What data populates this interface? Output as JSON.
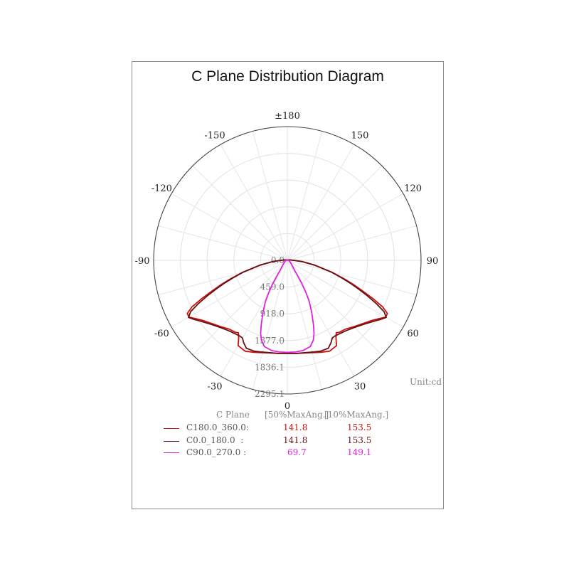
{
  "chart_data": {
    "type": "polar",
    "title": "C Plane Distribution Diagram",
    "unit_label": "Unit:cd",
    "angle_labels": [
      {
        "angle": 180,
        "text": "±180"
      },
      {
        "angle": 150,
        "text": "150"
      },
      {
        "angle": -150,
        "text": "-150"
      },
      {
        "angle": 120,
        "text": "120"
      },
      {
        "angle": -120,
        "text": "-120"
      },
      {
        "angle": 90,
        "text": "90"
      },
      {
        "angle": -90,
        "text": "-90"
      },
      {
        "angle": 60,
        "text": "60"
      },
      {
        "angle": -60,
        "text": "-60"
      },
      {
        "angle": 30,
        "text": "30"
      },
      {
        "angle": -30,
        "text": "-30"
      },
      {
        "angle": 0,
        "text": "0"
      }
    ],
    "radial_max": 2295.1,
    "radial_ticks": [
      "0.0",
      "459.0",
      "918.0",
      "1377.0",
      "1836.1",
      "2295.1"
    ],
    "grid": true,
    "series": [
      {
        "name": "C180.0_360.0:",
        "color": "#cc1111",
        "points": [
          [
            0,
            1600
          ],
          [
            5,
            1605
          ],
          [
            10,
            1615
          ],
          [
            15,
            1640
          ],
          [
            20,
            1680
          ],
          [
            25,
            1720
          ],
          [
            30,
            1690
          ],
          [
            32,
            1575
          ],
          [
            34,
            1500
          ],
          [
            36,
            1525
          ],
          [
            40,
            1545
          ],
          [
            45,
            1610
          ],
          [
            50,
            1690
          ],
          [
            55,
            1790
          ],
          [
            58,
            1880
          ],
          [
            60,
            1950
          ],
          [
            62,
            1945
          ],
          [
            64,
            1820
          ],
          [
            66,
            1600
          ],
          [
            68,
            1380
          ],
          [
            70,
            1200
          ],
          [
            72,
            1020
          ],
          [
            75,
            790
          ],
          [
            80,
            480
          ],
          [
            85,
            260
          ],
          [
            90,
            110
          ],
          [
            95,
            60
          ],
          [
            100,
            40
          ],
          [
            110,
            20
          ],
          [
            130,
            8
          ],
          [
            150,
            5
          ],
          [
            180,
            0
          ]
        ]
      },
      {
        "name": "C0.0_180.0  :",
        "color": "#661111",
        "points": [
          [
            0,
            1600
          ],
          [
            5,
            1605
          ],
          [
            10,
            1612
          ],
          [
            15,
            1630
          ],
          [
            20,
            1660
          ],
          [
            25,
            1665
          ],
          [
            28,
            1600
          ],
          [
            30,
            1540
          ],
          [
            32,
            1535
          ],
          [
            36,
            1550
          ],
          [
            40,
            1575
          ],
          [
            45,
            1630
          ],
          [
            50,
            1710
          ],
          [
            55,
            1820
          ],
          [
            58,
            1905
          ],
          [
            60,
            1960
          ],
          [
            62,
            1880
          ],
          [
            64,
            1700
          ],
          [
            66,
            1510
          ],
          [
            68,
            1320
          ],
          [
            70,
            1150
          ],
          [
            72,
            990
          ],
          [
            75,
            780
          ],
          [
            80,
            470
          ],
          [
            85,
            255
          ],
          [
            90,
            110
          ],
          [
            95,
            60
          ],
          [
            100,
            40
          ],
          [
            110,
            20
          ],
          [
            130,
            8
          ],
          [
            150,
            5
          ],
          [
            180,
            0
          ]
        ]
      },
      {
        "name": "C90.0_270.0 :",
        "color": "#dd22dd",
        "points": [
          [
            0,
            1580
          ],
          [
            5,
            1580
          ],
          [
            10,
            1570
          ],
          [
            15,
            1530
          ],
          [
            18,
            1440
          ],
          [
            20,
            1340
          ],
          [
            22,
            1200
          ],
          [
            25,
            990
          ],
          [
            28,
            800
          ],
          [
            30,
            640
          ],
          [
            32,
            470
          ],
          [
            34,
            310
          ],
          [
            36,
            210
          ],
          [
            40,
            140
          ],
          [
            50,
            80
          ],
          [
            70,
            40
          ],
          [
            90,
            20
          ],
          [
            120,
            8
          ],
          [
            150,
            4
          ],
          [
            180,
            0
          ]
        ]
      }
    ],
    "legend_table": {
      "header": [
        "C Plane",
        "[50%MaxAng.]",
        "[10%MaxAng.]"
      ],
      "rows": [
        {
          "name": "C180.0_360.0:",
          "v50": "141.8",
          "v10": "153.5",
          "color": "#cc1111"
        },
        {
          "name": "C0.0_180.0  :",
          "v50": "141.8",
          "v10": "153.5",
          "color": "#661111"
        },
        {
          "name": "C90.0_270.0 :",
          "v50": "69.7",
          "v10": "149.1",
          "color": "#dd22dd"
        }
      ]
    }
  }
}
